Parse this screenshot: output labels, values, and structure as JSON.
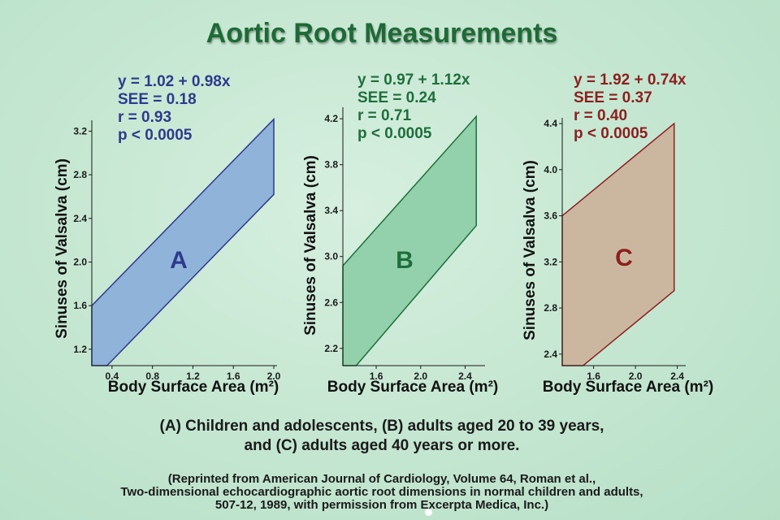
{
  "title": "Aortic Root Measurements",
  "caption": {
    "line1": "(A) Children and adolescents, (B) adults aged 20 to 39 years,",
    "line2": "and (C) adults aged 40 years or more."
  },
  "credit": {
    "line1": "(Reprinted from American Journal of Cardiology, Volume 64, Roman et al.,",
    "line2": "Two-dimensional echocardiographic aortic root dimensions in normal children and adults,",
    "line3": "507-12, 1989, with permission from Excerpta Medica, Inc.)"
  },
  "chart_data": [
    {
      "type": "area",
      "panel_label": "A",
      "xlabel": "Body Surface Area (m²)",
      "ylabel": "Sinuses of Valsalva (cm)",
      "xlim": [
        0.2,
        2.0
      ],
      "ylim": [
        1.05,
        3.3
      ],
      "xticks": [
        0.4,
        0.8,
        1.2,
        1.6,
        2.0
      ],
      "xtick_labels": [
        "0.4",
        "0.8",
        "1.2",
        "1.6",
        "2.0"
      ],
      "yticks": [
        1.2,
        1.6,
        2.0,
        2.4,
        2.8,
        3.2
      ],
      "ytick_labels": [
        "1.2",
        "1.6",
        "2.0",
        "2.4",
        "2.8",
        "3.2"
      ],
      "stats": [
        "y = 1.02 + 0.98x",
        "SEE = 0.18",
        "r = 0.93",
        "p < 0.0005"
      ],
      "intercept": 1.02,
      "slope": 0.98,
      "see": 0.18,
      "band_polygon": [
        [
          0.2,
          1.6
        ],
        [
          2.0,
          3.31
        ],
        [
          2.0,
          2.62
        ],
        [
          0.35,
          1.05
        ],
        [
          0.2,
          1.05
        ]
      ],
      "color": "#2e3a8c",
      "fill": "#8fb3d9"
    },
    {
      "type": "area",
      "panel_label": "B",
      "xlabel": "Body Surface Area (m²)",
      "ylabel": "Sinuses of Valsalva (cm)",
      "xlim": [
        1.3,
        2.55
      ],
      "ylim": [
        2.05,
        4.3
      ],
      "xticks": [
        1.6,
        2.0,
        2.4
      ],
      "xtick_labels": [
        "1.6",
        "2.0",
        "2.4"
      ],
      "yticks": [
        2.2,
        2.6,
        3.0,
        3.4,
        3.8,
        4.2
      ],
      "ytick_labels": [
        "2.2",
        "2.6",
        "3.0",
        "3.4",
        "3.8",
        "4.2"
      ],
      "stats": [
        "y = 0.97 + 1.12x",
        "SEE = 0.24",
        "r = 0.71",
        "p < 0.0005"
      ],
      "intercept": 0.97,
      "slope": 1.12,
      "see": 0.24,
      "band_polygon": [
        [
          1.3,
          2.92
        ],
        [
          2.5,
          4.22
        ],
        [
          2.5,
          3.27
        ],
        [
          1.42,
          2.05
        ],
        [
          1.3,
          2.05
        ]
      ],
      "color": "#1f6e3c",
      "fill": "#92d1ac"
    },
    {
      "type": "area",
      "panel_label": "C",
      "xlabel": "Body Surface Area (m²)",
      "ylabel": "Sinuses of Valsalva (cm)",
      "xlim": [
        1.3,
        2.45
      ],
      "ylim": [
        2.3,
        4.45
      ],
      "xticks": [
        1.6,
        2.0,
        2.4
      ],
      "xtick_labels": [
        "1.6",
        "2.0",
        "2.4"
      ],
      "yticks": [
        2.4,
        2.8,
        3.2,
        3.6,
        4.0,
        4.4
      ],
      "ytick_labels": [
        "2.4",
        "2.8",
        "3.2",
        "3.6",
        "4.0",
        "4.4"
      ],
      "stats": [
        "y = 1.92 + 0.74x",
        "SEE = 0.37",
        "r = 0.40",
        "p < 0.0005"
      ],
      "intercept": 1.92,
      "slope": 0.74,
      "see": 0.37,
      "band_polygon": [
        [
          1.3,
          3.6
        ],
        [
          2.37,
          4.4
        ],
        [
          2.37,
          2.95
        ],
        [
          1.5,
          2.3
        ],
        [
          1.3,
          2.3
        ]
      ],
      "color": "#8c1f1f",
      "fill": "#cbb7a0"
    }
  ]
}
